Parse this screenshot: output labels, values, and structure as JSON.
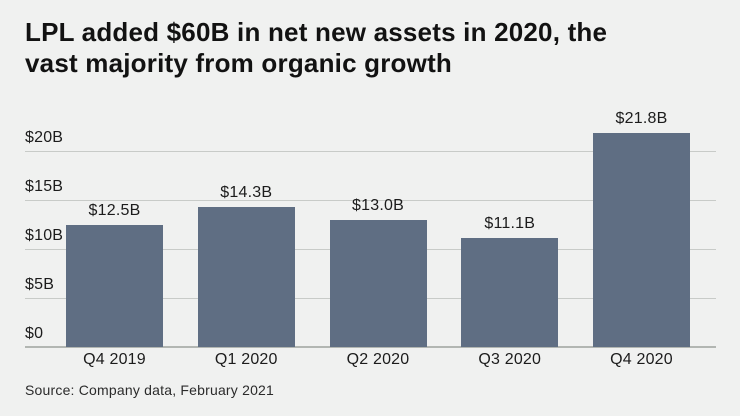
{
  "title_lines": [
    "LPL added $60B in net new assets in 2020, the",
    "vast majority from organic growth"
  ],
  "source": "Source: Company data, February 2021",
  "colors": {
    "background": "#f0f1f0",
    "bar": "#5f6e83",
    "gridline": "#c8cbc8",
    "baseline": "#b2b6b2",
    "title_text": "#121212",
    "label_text": "#1c1c1c"
  },
  "chart_data": {
    "type": "bar",
    "title": "LPL added $60B in net new assets in 2020, the vast majority from organic growth",
    "categories": [
      "Q4 2019",
      "Q1 2020",
      "Q2 2020",
      "Q3 2020",
      "Q4 2020"
    ],
    "values": [
      12.5,
      14.3,
      13.0,
      11.1,
      21.8
    ],
    "value_labels": [
      "$12.5B",
      "$14.3B",
      "$13.0B",
      "$11.1B",
      "$21.8B"
    ],
    "y_ticks": [
      0,
      5,
      10,
      15,
      20
    ],
    "y_tick_labels": [
      "$0",
      "$5B",
      "$10B",
      "$15B",
      "$20B"
    ],
    "ylim": [
      0,
      20
    ],
    "xlabel": "",
    "ylabel": "",
    "grid": true,
    "legend": false,
    "annotation": "Source: Company data, February 2021"
  }
}
